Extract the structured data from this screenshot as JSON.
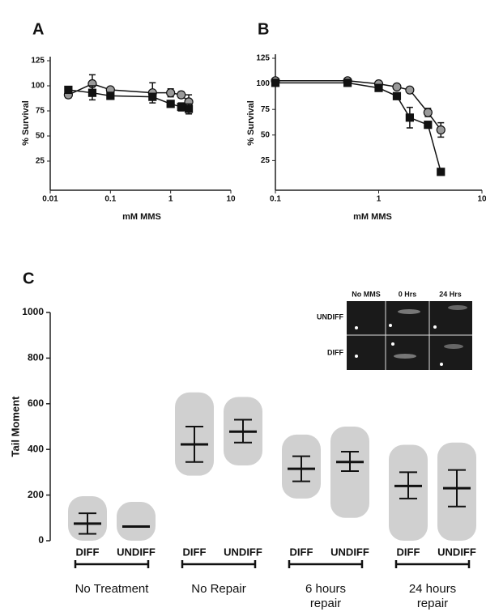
{
  "chart_data": [
    {
      "type": "line",
      "label": "A",
      "xlabel": "mM MMS",
      "ylabel": "% Survival",
      "xscale": "log",
      "xlim": [
        0.01,
        10
      ],
      "xticks": [
        0.01,
        0.1,
        1,
        10
      ],
      "ylim": [
        0,
        125
      ],
      "yticks": [
        25,
        50,
        75,
        100,
        125
      ],
      "series": [
        {
          "marker": "circle",
          "color": "#9a9a9a",
          "x": [
            0.02,
            0.05,
            0.1,
            0.5,
            1,
            1.5,
            2
          ],
          "values": [
            91,
            102,
            96,
            93,
            93,
            91,
            84
          ],
          "errors": [
            3,
            9,
            2,
            10,
            4,
            3,
            7
          ]
        },
        {
          "marker": "square",
          "color": "#111111",
          "x": [
            0.02,
            0.05,
            0.1,
            0.5,
            1,
            1.5,
            2
          ],
          "values": [
            96,
            93,
            90,
            89,
            82,
            79,
            77
          ],
          "errors": [
            3,
            7,
            3,
            3,
            3,
            4,
            5
          ]
        }
      ]
    },
    {
      "type": "line",
      "label": "B",
      "xlabel": "mM MMS",
      "ylabel": "% Survival",
      "xscale": "log",
      "xlim": [
        0.1,
        10
      ],
      "xticks": [
        0.1,
        1,
        10
      ],
      "ylim": [
        0,
        125
      ],
      "yticks": [
        25,
        50,
        75,
        100,
        125
      ],
      "series": [
        {
          "marker": "circle",
          "color": "#9a9a9a",
          "x": [
            0.1,
            0.5,
            1,
            1.5,
            2,
            3,
            4
          ],
          "values": [
            103,
            103,
            100,
            97,
            94,
            72,
            55
          ],
          "errors": [
            2,
            2,
            2,
            2,
            2,
            4,
            7
          ]
        },
        {
          "marker": "square",
          "color": "#111111",
          "x": [
            0.1,
            0.5,
            1,
            1.5,
            2,
            3,
            4
          ],
          "values": [
            101,
            101,
            96,
            88,
            67,
            60,
            14
          ],
          "errors": [
            2,
            2,
            2,
            3,
            10,
            3,
            2
          ]
        }
      ]
    },
    {
      "type": "dot",
      "label": "C",
      "ylabel": "Tail Moment",
      "ylim": [
        0,
        1000
      ],
      "yticks": [
        0,
        200,
        400,
        600,
        800,
        1000
      ],
      "categories": [
        "DIFF",
        "UNDIFF",
        "DIFF",
        "UNDIFF",
        "DIFF",
        "UNDIFF",
        "DIFF",
        "UNDIFF"
      ],
      "groups": [
        [
          "No Treatment"
        ],
        [
          "No Repair"
        ],
        [
          "6 hours",
          "repair"
        ],
        [
          "24 hours",
          "repair"
        ]
      ],
      "color": "#c8c8c8",
      "means": [
        75,
        62,
        422,
        478,
        315,
        345,
        240,
        230
      ],
      "sd_low": [
        30,
        null,
        345,
        430,
        260,
        305,
        185,
        150
      ],
      "sd_high": [
        120,
        null,
        500,
        530,
        370,
        390,
        300,
        310
      ],
      "min": [
        0,
        0,
        285,
        330,
        185,
        100,
        0,
        0
      ],
      "max": [
        195,
        170,
        650,
        630,
        465,
        500,
        420,
        430
      ],
      "inset": {
        "columns": [
          "No MMS",
          "0 Hrs",
          "24 Hrs"
        ],
        "rows": [
          "UNDIFF",
          "DIFF"
        ]
      }
    }
  ]
}
